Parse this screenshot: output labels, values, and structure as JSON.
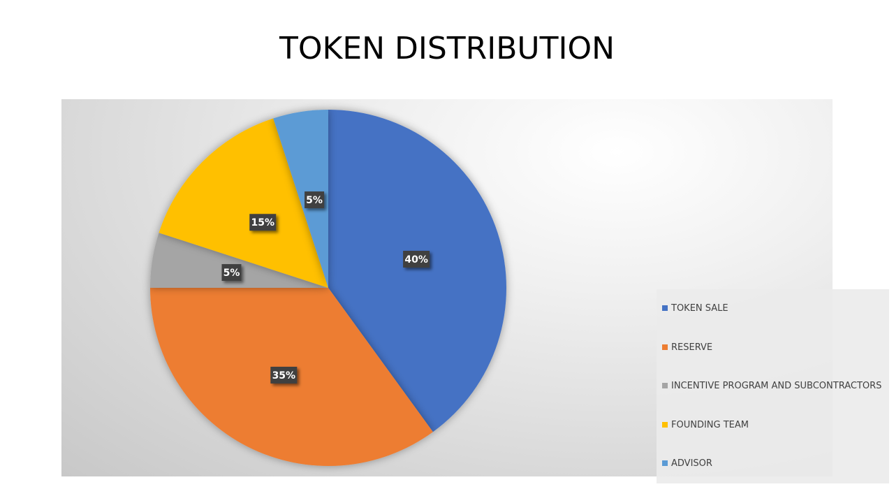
{
  "slide": {
    "title": "TOKEN DISTRIBUTION"
  },
  "chart_data": {
    "type": "pie",
    "title": "",
    "categories": [
      "TOKEN SALE",
      "RESERVE",
      "INCENTIVE PROGRAM AND SUBCONTRACTORS",
      "FOUNDING TEAM",
      "ADVISOR"
    ],
    "values": [
      40,
      35,
      5,
      15,
      5
    ],
    "data_labels": [
      "40%",
      "35%",
      "5%",
      "15%",
      "5%"
    ],
    "colors": [
      "#4472C4",
      "#ED7D31",
      "#A5A5A5",
      "#FFC000",
      "#5B9BD5"
    ],
    "start_angle": "12 o'clock",
    "direction": "clockwise",
    "legend_position": "right",
    "data_label_style": "white bold text on dark boxes"
  }
}
